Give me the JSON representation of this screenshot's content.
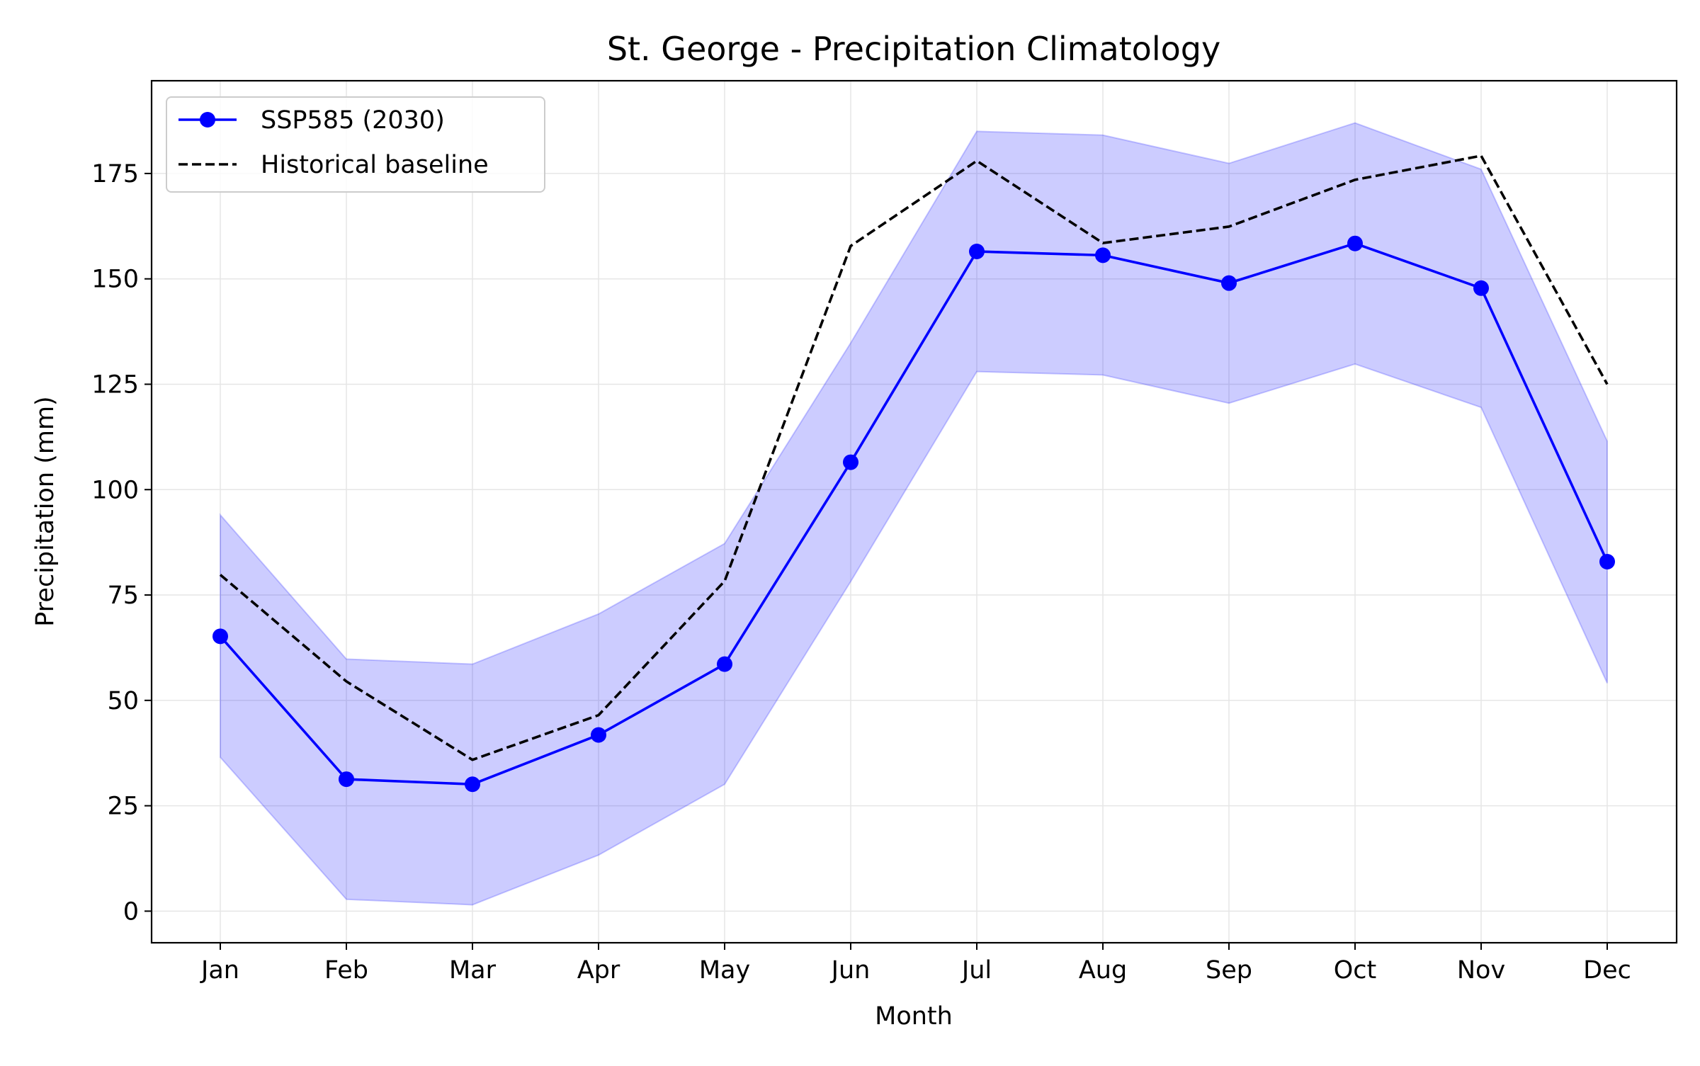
{
  "chart_data": {
    "type": "line",
    "title": "St. George - Precipitation Climatology",
    "xlabel": "Month",
    "ylabel": "Precipitation (mm)",
    "categories": [
      "Jan",
      "Feb",
      "Mar",
      "Apr",
      "May",
      "Jun",
      "Jul",
      "Aug",
      "Sep",
      "Oct",
      "Nov",
      "Dec"
    ],
    "ylim": [
      -7.5,
      197
    ],
    "yticks": [
      0,
      25,
      50,
      75,
      100,
      125,
      150,
      175
    ],
    "grid": true,
    "legend_position": "top-left",
    "series": [
      {
        "name": "SSP585 (2030)",
        "color": "#0000ff",
        "style": "solid-with-markers",
        "values": [
          65.2,
          31.3,
          30.1,
          41.8,
          58.6,
          106.5,
          156.5,
          155.6,
          149.0,
          158.4,
          147.8,
          82.9
        ]
      },
      {
        "name": "Historical baseline",
        "color": "#000000",
        "style": "dashed",
        "values": [
          79.8,
          54.5,
          35.9,
          46.5,
          78.3,
          157.8,
          178.0,
          158.5,
          162.4,
          173.5,
          179.2,
          125.0
        ]
      }
    ],
    "band": {
      "color": "#0000ff",
      "opacity": 0.2,
      "upper": [
        94.0,
        59.8,
        58.6,
        70.5,
        87.2,
        134.8,
        185.0,
        184.1,
        177.4,
        187.0,
        176.0,
        111.5
      ],
      "lower": [
        36.5,
        2.8,
        1.5,
        13.3,
        30.1,
        78.2,
        128.0,
        127.2,
        120.5,
        129.8,
        119.5,
        54.1
      ]
    }
  }
}
